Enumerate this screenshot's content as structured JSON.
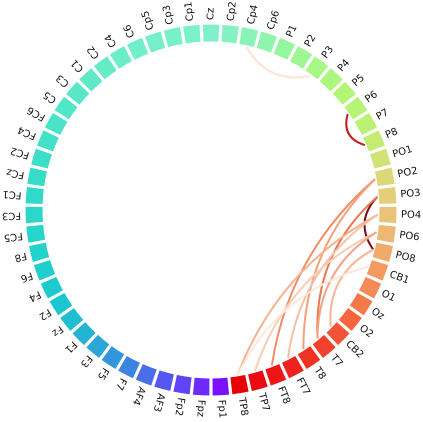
{
  "chart_data": {
    "type": "chord",
    "nodes": [
      {
        "label": "Cz",
        "color": "#7ff0c9"
      },
      {
        "label": "Cp2",
        "color": "#83f2c0"
      },
      {
        "label": "Cp4",
        "color": "#88f4b8"
      },
      {
        "label": "Cp6",
        "color": "#8df5ad"
      },
      {
        "label": "P1",
        "color": "#96f69f"
      },
      {
        "label": "P2",
        "color": "#9ef793"
      },
      {
        "label": "P3",
        "color": "#a6f887"
      },
      {
        "label": "P4",
        "color": "#adf77e"
      },
      {
        "label": "P5",
        "color": "#b3f577"
      },
      {
        "label": "P6",
        "color": "#b7f374"
      },
      {
        "label": "P7",
        "color": "#bbf172"
      },
      {
        "label": "P8",
        "color": "#c4ec73"
      },
      {
        "label": "PO1",
        "color": "#d3e276"
      },
      {
        "label": "PO2",
        "color": "#dcd87a"
      },
      {
        "label": "PO3",
        "color": "#e3cf7a"
      },
      {
        "label": "PO4",
        "color": "#e9c478"
      },
      {
        "label": "PO6",
        "color": "#edb873"
      },
      {
        "label": "PO8",
        "color": "#f0aa6a"
      },
      {
        "label": "CB1",
        "color": "#f29a60"
      },
      {
        "label": "O1",
        "color": "#f48a55"
      },
      {
        "label": "Oz",
        "color": "#f57849"
      },
      {
        "label": "O2",
        "color": "#f5663e"
      },
      {
        "label": "CB2",
        "color": "#f45335"
      },
      {
        "label": "T7",
        "color": "#f3412c"
      },
      {
        "label": "T8",
        "color": "#f13124"
      },
      {
        "label": "FT7",
        "color": "#ef231d"
      },
      {
        "label": "FT8",
        "color": "#ed1616"
      },
      {
        "label": "TP7",
        "color": "#eb0a0f"
      },
      {
        "label": "TP8",
        "color": "#e80006"
      },
      {
        "label": "Fp1",
        "color": "#7a10ff"
      },
      {
        "label": "Fpz",
        "color": "#6d2afb"
      },
      {
        "label": "Fp2",
        "color": "#6142f6"
      },
      {
        "label": "AF3",
        "color": "#5457f0"
      },
      {
        "label": "AF4",
        "color": "#486ee8"
      },
      {
        "label": "F7",
        "color": "#3c83e2"
      },
      {
        "label": "F5",
        "color": "#3396dc"
      },
      {
        "label": "F3",
        "color": "#2aa6d7"
      },
      {
        "label": "F1",
        "color": "#24b4d3"
      },
      {
        "label": "Fz",
        "color": "#1fbfd1"
      },
      {
        "label": "F2",
        "color": "#1cc6d0"
      },
      {
        "label": "F4",
        "color": "#1dcbcf"
      },
      {
        "label": "F6",
        "color": "#20cfcd"
      },
      {
        "label": "F8",
        "color": "#23d2cb"
      },
      {
        "label": "FC5",
        "color": "#27d5ca"
      },
      {
        "label": "FC3",
        "color": "#2bd7c9"
      },
      {
        "label": "FC1",
        "color": "#30d9c8"
      },
      {
        "label": "FCz",
        "color": "#36dcc8"
      },
      {
        "label": "FC2",
        "color": "#3cdec8"
      },
      {
        "label": "FC4",
        "color": "#43e1c8"
      },
      {
        "label": "FC6",
        "color": "#4ae3c8"
      },
      {
        "label": "C5",
        "color": "#52e5c8"
      },
      {
        "label": "C3",
        "color": "#59e7c8"
      },
      {
        "label": "C1",
        "color": "#5fe9c8"
      },
      {
        "label": "C2",
        "color": "#65ebc8"
      },
      {
        "label": "C4",
        "color": "#6beec8"
      },
      {
        "label": "C6",
        "color": "#70efc8"
      },
      {
        "label": "Cp5",
        "color": "#74efc8"
      },
      {
        "label": "Cp3",
        "color": "#78f0c8"
      },
      {
        "label": "Cp1",
        "color": "#7cf0c8"
      }
    ],
    "links": [
      {
        "source": "P3",
        "target": "Cp4",
        "color": "#fde4da"
      },
      {
        "source": "P6",
        "target": "P8",
        "color": "#c21a1a"
      },
      {
        "source": "PO3",
        "target": "PO8",
        "color": "#7d0a14"
      },
      {
        "source": "PO3",
        "target": "T7",
        "color": "#e8784d"
      },
      {
        "source": "PO2",
        "target": "FT8",
        "color": "#f28e66"
      },
      {
        "source": "PO2",
        "target": "T8",
        "color": "#f4a079"
      },
      {
        "source": "PO4",
        "target": "TP8",
        "color": "#f6b18f"
      },
      {
        "source": "PO4",
        "target": "FT7",
        "color": "#f7bfa3"
      },
      {
        "source": "PO6",
        "target": "TP7",
        "color": "#f9cdb6"
      },
      {
        "source": "PO6",
        "target": "T7",
        "color": "#f3a381"
      },
      {
        "source": "PO8",
        "target": "CB2",
        "color": "#f6b595"
      },
      {
        "source": "CB1",
        "target": "TP8",
        "color": "#fde8dd"
      }
    ]
  }
}
